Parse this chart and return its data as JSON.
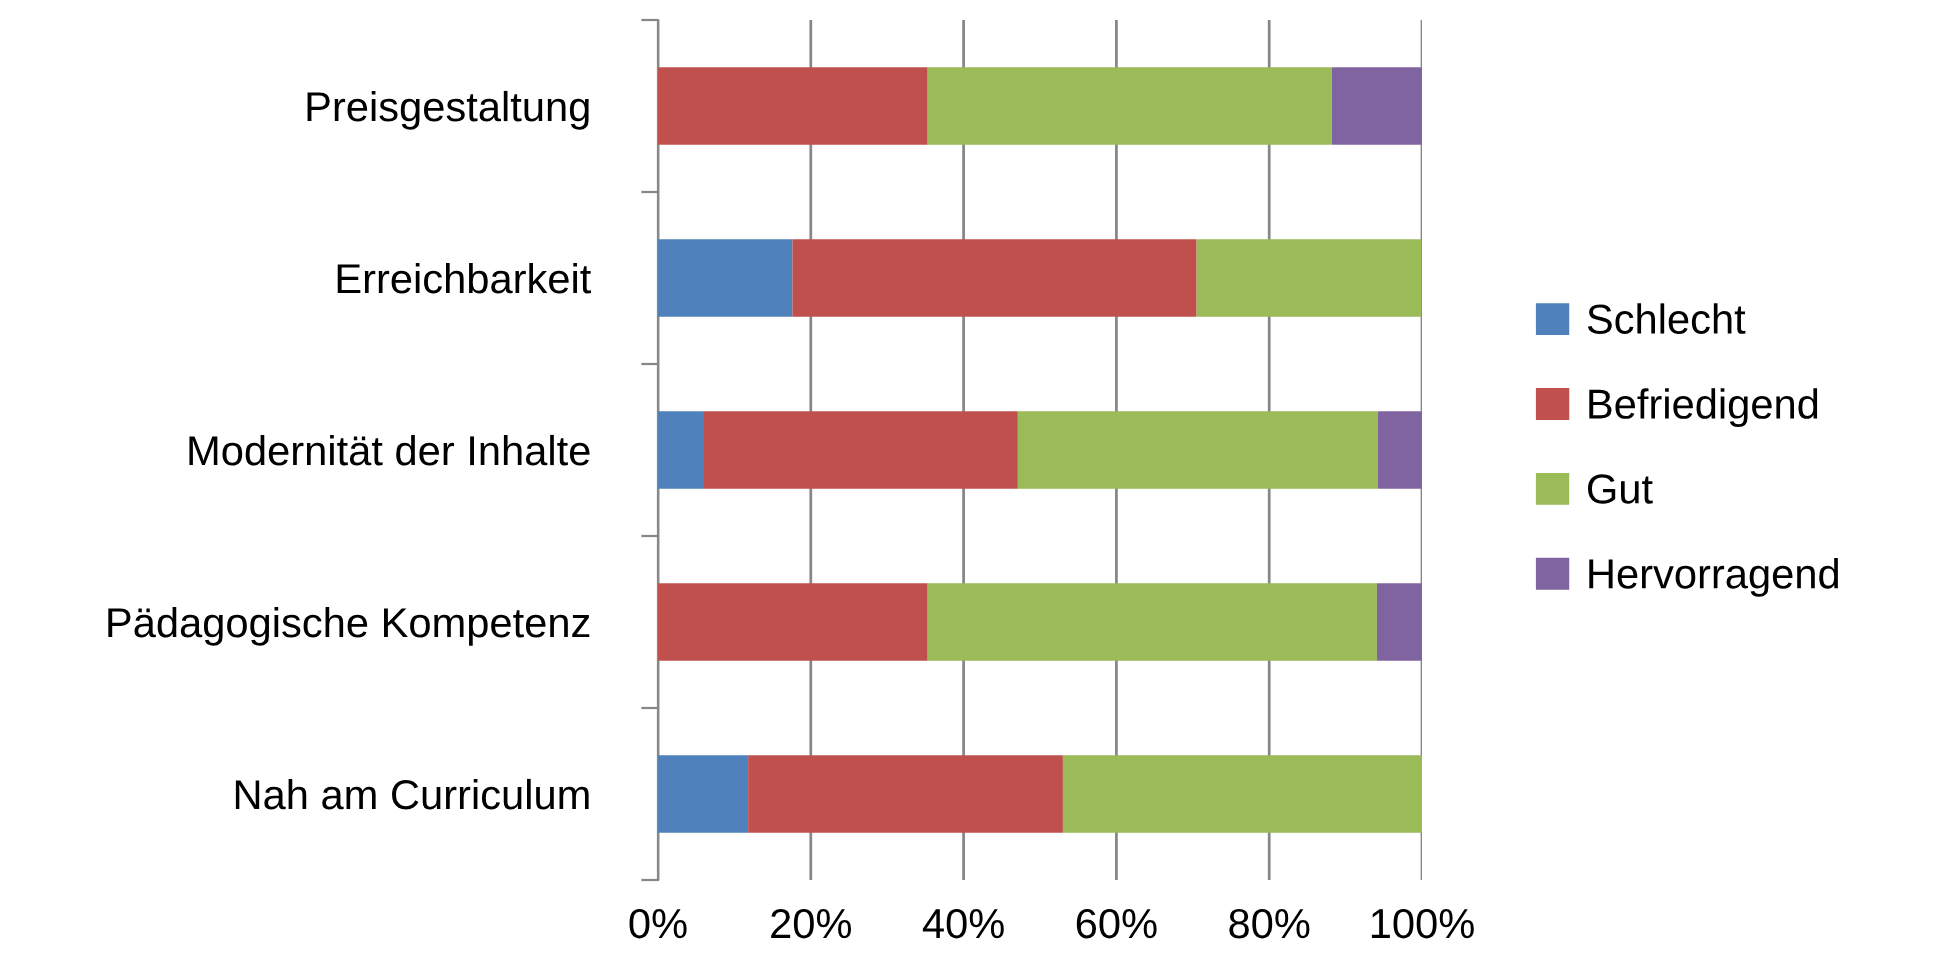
{
  "chart_data": {
    "type": "bar",
    "orientation": "horizontal",
    "stacked": true,
    "categories": [
      "Preisgestaltung",
      "Erreichbarkeit",
      "Modernität der Inhalte",
      "Pädagogische Kompetenz",
      "Nah am Curriculum"
    ],
    "series": [
      {
        "name": "Schlecht",
        "color": "#4f81bd",
        "values": [
          null,
          17.6,
          5.9,
          null,
          11.8
        ]
      },
      {
        "name": "Befriedigend",
        "color": "#c0504d",
        "values": [
          35.3,
          52.9,
          41.2,
          35.3,
          41.2
        ]
      },
      {
        "name": "Gut",
        "color": "#9bbb59",
        "values": [
          52.9,
          29.4,
          47.1,
          58.8,
          47.1
        ]
      },
      {
        "name": "Hervorragend",
        "color": "#8064a2",
        "values": [
          11.8,
          null,
          5.9,
          5.9,
          null
        ]
      }
    ],
    "xlim": [
      0,
      100
    ],
    "xticks": [
      {
        "value": 0,
        "label": "0%"
      },
      {
        "value": 20,
        "label": "20%"
      },
      {
        "value": 40,
        "label": "40%"
      },
      {
        "value": 60,
        "label": "60%"
      },
      {
        "value": 80,
        "label": "80%"
      },
      {
        "value": 100,
        "label": "100%"
      }
    ],
    "grid": "x",
    "legend": "right"
  }
}
